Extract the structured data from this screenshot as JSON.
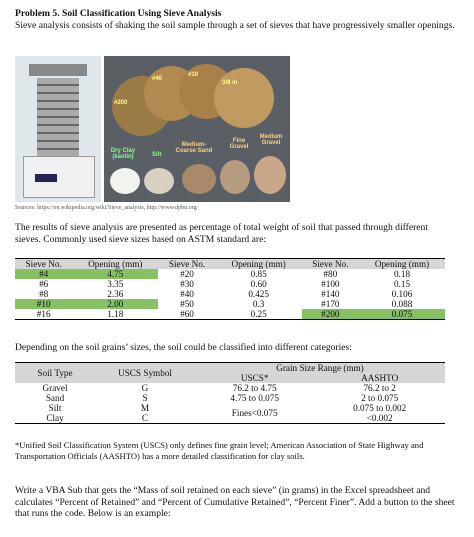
{
  "header": {
    "title": "Problem 5.  Soil Classification Using Sieve Analysis"
  },
  "intro": "Sieve analysis consists of shaking the soil sample through a set of sieves that have progressively smaller openings.",
  "figure": {
    "labels": [
      "#40",
      "#10",
      "3/8 in",
      "#200",
      "Medium-Coarse Sand",
      "Fine Gravel",
      "Medium Gravel",
      "Dry Clay (kaolin)",
      "Silt"
    ],
    "source": "Sources: https://en.wikipedia.org/wiki/Sieve_analysis, http://www.dpbu.org/"
  },
  "para1": "The results of sieve analysis are presented as percentage of total weight of soil that passed through different sieves. Commonly used sieve sizes based on ASTM standard are:",
  "sieve_table": {
    "headers": [
      "Sieve No.",
      "Opening (mm)",
      "Sieve No.",
      "Opening (mm)",
      "Sieve No.",
      "Opening (mm)"
    ],
    "rows": [
      [
        "#4",
        "4.75",
        "#20",
        "0.85",
        "#80",
        "0.18"
      ],
      [
        "#6",
        "3.35",
        "#30",
        "0.60",
        "#100",
        "0.15"
      ],
      [
        "#8",
        "2.36",
        "#40",
        "0.425",
        "#140",
        "0.106"
      ],
      [
        "#10",
        "2.00",
        "#50",
        "0.3",
        "#170",
        "0.088"
      ],
      [
        "#16",
        "1.18",
        "#60",
        "0.25",
        "#200",
        "0.075"
      ]
    ]
  },
  "para2": "Depending on the soil grains’ sizes, the soil could be classified into different categories:",
  "soil_table": {
    "headers": {
      "soil_type": "Soil Type",
      "uscs_symbol": "USCS Symbol",
      "range": "Grain Size Range (mm)",
      "uscs": "USCS*",
      "aashto": "AASHTO"
    },
    "rows": [
      [
        "Gravel",
        "G",
        "76.2 to 4.75",
        "76.2 to 2"
      ],
      [
        "Sand",
        "S",
        "4.75 to 0.075",
        "2 to 0.075"
      ],
      [
        "Silt",
        "M",
        "Fines<0.075",
        "0.075 to 0.002"
      ],
      [
        "Clay",
        "C",
        "<0.002"
      ]
    ]
  },
  "note": "*Unified Soil Classification System (USCS) only defines fine grain level; American Association of State Highway and Transportation Officials (AASHTO) has a more detailed classification for clay soils.",
  "task": "Write a VBA Sub that gets the “Mass of soil retained on each sieve” (in grams) in the Excel spreadsheet and calculates “Percent of Retained” and “Percent of Cumulative Retained”, “Percent Finer”. Add a button to the sheet that runs the code. Below is an example:"
}
